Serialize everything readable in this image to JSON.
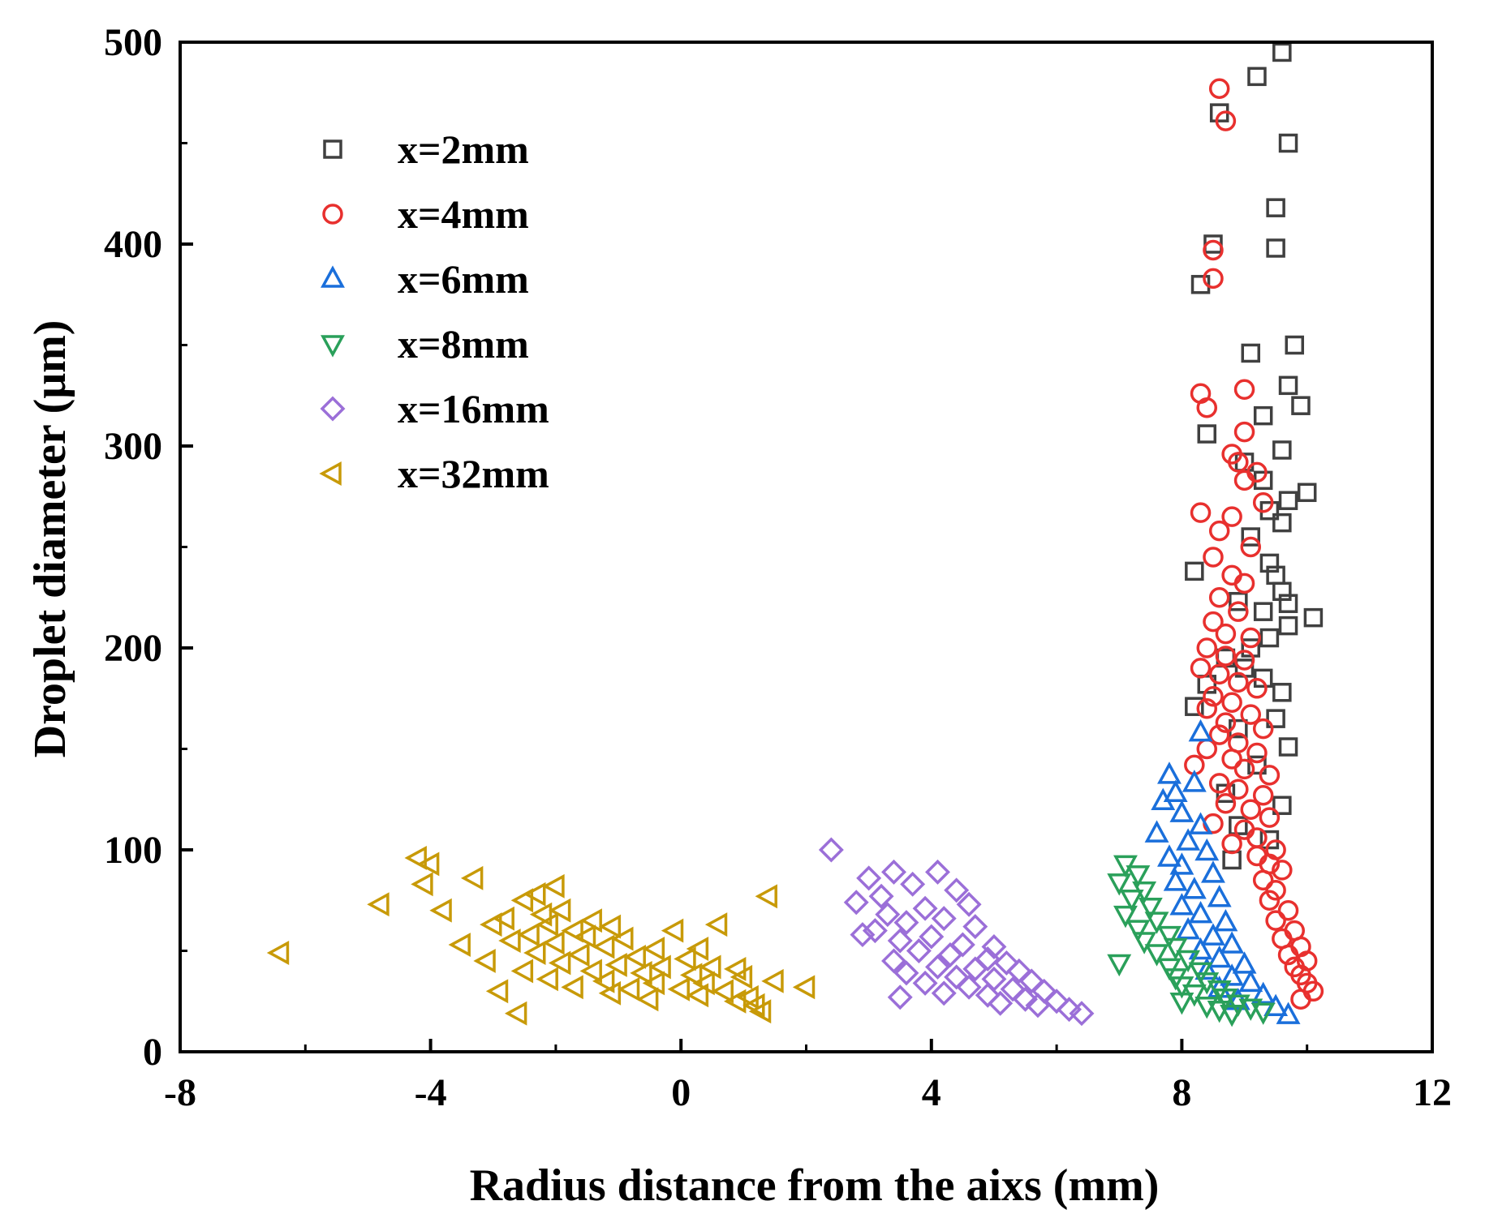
{
  "chart_data": {
    "type": "scatter",
    "title": "",
    "xlabel": "Radius distance from the aixs (mm)",
    "ylabel": "Droplet diameter (μm)",
    "xlim": [
      -8,
      12
    ],
    "ylim": [
      0,
      500
    ],
    "x_ticks": [
      -8,
      -4,
      0,
      4,
      8,
      12
    ],
    "y_ticks": [
      0,
      100,
      200,
      300,
      400,
      500
    ],
    "grid": false,
    "legend_position": "top-left",
    "series": [
      {
        "name": "x=2mm",
        "marker": "square",
        "color": "#404040",
        "points": [
          [
            9.6,
            495
          ],
          [
            9.2,
            483
          ],
          [
            8.6,
            465
          ],
          [
            9.7,
            450
          ],
          [
            9.5,
            418
          ],
          [
            8.5,
            400
          ],
          [
            9.5,
            398
          ],
          [
            8.3,
            380
          ],
          [
            9.8,
            350
          ],
          [
            9.1,
            346
          ],
          [
            9.7,
            330
          ],
          [
            9.9,
            320
          ],
          [
            9.3,
            315
          ],
          [
            8.4,
            306
          ],
          [
            9.6,
            298
          ],
          [
            9.0,
            292
          ],
          [
            9.3,
            283
          ],
          [
            10.0,
            277
          ],
          [
            9.7,
            273
          ],
          [
            9.4,
            268
          ],
          [
            9.6,
            262
          ],
          [
            9.1,
            255
          ],
          [
            9.4,
            242
          ],
          [
            8.2,
            238
          ],
          [
            9.5,
            236
          ],
          [
            9.6,
            228
          ],
          [
            8.9,
            223
          ],
          [
            9.7,
            222
          ],
          [
            9.3,
            218
          ],
          [
            10.1,
            215
          ],
          [
            9.7,
            211
          ],
          [
            9.4,
            205
          ],
          [
            9.1,
            200
          ],
          [
            8.7,
            195
          ],
          [
            9.0,
            190
          ],
          [
            9.3,
            185
          ],
          [
            8.4,
            182
          ],
          [
            9.6,
            178
          ],
          [
            8.2,
            171
          ],
          [
            9.5,
            165
          ],
          [
            8.9,
            160
          ],
          [
            9.7,
            151
          ],
          [
            9.2,
            142
          ],
          [
            8.7,
            128
          ],
          [
            9.6,
            122
          ],
          [
            8.9,
            112
          ],
          [
            9.4,
            105
          ],
          [
            8.8,
            95
          ]
        ]
      },
      {
        "name": "x=4mm",
        "marker": "circle",
        "color": "#e8302e",
        "points": [
          [
            8.6,
            477
          ],
          [
            8.7,
            461
          ],
          [
            8.5,
            397
          ],
          [
            8.5,
            383
          ],
          [
            9.0,
            328
          ],
          [
            8.3,
            326
          ],
          [
            8.4,
            319
          ],
          [
            9.0,
            307
          ],
          [
            8.8,
            296
          ],
          [
            8.9,
            292
          ],
          [
            9.2,
            287
          ],
          [
            9.0,
            283
          ],
          [
            9.3,
            272
          ],
          [
            8.3,
            267
          ],
          [
            8.8,
            265
          ],
          [
            8.6,
            258
          ],
          [
            9.1,
            250
          ],
          [
            8.5,
            245
          ],
          [
            8.8,
            236
          ],
          [
            9.0,
            232
          ],
          [
            8.6,
            225
          ],
          [
            8.9,
            218
          ],
          [
            8.5,
            213
          ],
          [
            8.7,
            207
          ],
          [
            9.1,
            205
          ],
          [
            8.4,
            200
          ],
          [
            8.7,
            196
          ],
          [
            9.0,
            194
          ],
          [
            8.3,
            190
          ],
          [
            8.6,
            187
          ],
          [
            8.9,
            183
          ],
          [
            9.2,
            180
          ],
          [
            8.5,
            176
          ],
          [
            8.8,
            173
          ],
          [
            8.4,
            170
          ],
          [
            9.1,
            167
          ],
          [
            8.7,
            163
          ],
          [
            9.3,
            160
          ],
          [
            8.6,
            157
          ],
          [
            8.9,
            153
          ],
          [
            8.4,
            150
          ],
          [
            9.2,
            148
          ],
          [
            8.8,
            145
          ],
          [
            8.2,
            142
          ],
          [
            9.0,
            140
          ],
          [
            9.4,
            137
          ],
          [
            8.6,
            133
          ],
          [
            8.9,
            130
          ],
          [
            9.3,
            127
          ],
          [
            8.7,
            123
          ],
          [
            9.1,
            120
          ],
          [
            9.4,
            116
          ],
          [
            8.5,
            113
          ],
          [
            9.0,
            110
          ],
          [
            9.2,
            106
          ],
          [
            8.8,
            103
          ],
          [
            9.5,
            100
          ],
          [
            9.2,
            97
          ],
          [
            9.4,
            93
          ],
          [
            9.6,
            90
          ],
          [
            9.3,
            85
          ],
          [
            9.5,
            80
          ],
          [
            9.4,
            75
          ],
          [
            9.7,
            70
          ],
          [
            9.5,
            65
          ],
          [
            9.8,
            60
          ],
          [
            9.6,
            56
          ],
          [
            9.9,
            52
          ],
          [
            9.7,
            48
          ],
          [
            10.0,
            45
          ],
          [
            9.8,
            42
          ],
          [
            9.9,
            38
          ],
          [
            10.0,
            34
          ],
          [
            10.1,
            30
          ],
          [
            9.9,
            26
          ]
        ]
      },
      {
        "name": "x=6mm",
        "marker": "triangle-up",
        "color": "#1a6fdb",
        "points": [
          [
            8.3,
            158
          ],
          [
            7.8,
            137
          ],
          [
            8.2,
            133
          ],
          [
            7.9,
            128
          ],
          [
            7.7,
            124
          ],
          [
            8.0,
            118
          ],
          [
            8.3,
            112
          ],
          [
            7.6,
            108
          ],
          [
            8.1,
            104
          ],
          [
            8.4,
            99
          ],
          [
            7.8,
            96
          ],
          [
            8.0,
            92
          ],
          [
            8.5,
            88
          ],
          [
            7.9,
            84
          ],
          [
            8.2,
            80
          ],
          [
            8.6,
            76
          ],
          [
            8.0,
            72
          ],
          [
            8.3,
            68
          ],
          [
            8.7,
            64
          ],
          [
            8.1,
            60
          ],
          [
            8.5,
            57
          ],
          [
            8.8,
            53
          ],
          [
            8.3,
            50
          ],
          [
            8.6,
            46
          ],
          [
            9.0,
            43
          ],
          [
            8.4,
            40
          ],
          [
            8.8,
            37
          ],
          [
            9.1,
            34
          ],
          [
            8.6,
            31
          ],
          [
            9.3,
            28
          ],
          [
            8.9,
            25
          ],
          [
            9.5,
            22
          ],
          [
            9.7,
            18
          ]
        ]
      },
      {
        "name": "x=8mm",
        "marker": "triangle-down",
        "color": "#2aa05a",
        "points": [
          [
            7.1,
            93
          ],
          [
            7.3,
            88
          ],
          [
            7.0,
            84
          ],
          [
            7.4,
            80
          ],
          [
            7.2,
            76
          ],
          [
            7.5,
            72
          ],
          [
            7.1,
            68
          ],
          [
            7.6,
            65
          ],
          [
            7.3,
            61
          ],
          [
            7.8,
            58
          ],
          [
            7.4,
            55
          ],
          [
            7.9,
            52
          ],
          [
            7.6,
            49
          ],
          [
            8.1,
            46
          ],
          [
            7.0,
            44
          ],
          [
            7.8,
            42
          ],
          [
            8.3,
            40
          ],
          [
            7.9,
            37
          ],
          [
            8.4,
            35
          ],
          [
            8.0,
            33
          ],
          [
            8.6,
            31
          ],
          [
            8.2,
            29
          ],
          [
            8.7,
            27
          ],
          [
            8.0,
            25
          ],
          [
            8.9,
            24
          ],
          [
            8.4,
            23
          ],
          [
            9.1,
            22
          ],
          [
            8.6,
            21
          ],
          [
            9.3,
            20
          ],
          [
            8.8,
            19
          ]
        ]
      },
      {
        "name": "x=16mm",
        "marker": "diamond",
        "color": "#9b6fd8",
        "points": [
          [
            2.4,
            100
          ],
          [
            3.4,
            89
          ],
          [
            4.1,
            89
          ],
          [
            3.0,
            86
          ],
          [
            3.7,
            83
          ],
          [
            4.4,
            80
          ],
          [
            3.2,
            77
          ],
          [
            2.8,
            74
          ],
          [
            4.6,
            73
          ],
          [
            3.9,
            71
          ],
          [
            3.3,
            68
          ],
          [
            4.2,
            66
          ],
          [
            3.6,
            64
          ],
          [
            4.7,
            62
          ],
          [
            3.1,
            60
          ],
          [
            2.9,
            58
          ],
          [
            4.0,
            57
          ],
          [
            3.5,
            55
          ],
          [
            4.5,
            53
          ],
          [
            5.0,
            52
          ],
          [
            3.8,
            50
          ],
          [
            4.3,
            48
          ],
          [
            4.9,
            46
          ],
          [
            3.4,
            45
          ],
          [
            5.2,
            44
          ],
          [
            4.1,
            42
          ],
          [
            4.7,
            41
          ],
          [
            5.4,
            40
          ],
          [
            3.6,
            39
          ],
          [
            4.4,
            37
          ],
          [
            5.0,
            36
          ],
          [
            5.6,
            35
          ],
          [
            3.9,
            34
          ],
          [
            4.6,
            32
          ],
          [
            5.3,
            31
          ],
          [
            5.8,
            30
          ],
          [
            4.2,
            29
          ],
          [
            4.9,
            28
          ],
          [
            3.5,
            27
          ],
          [
            5.5,
            26
          ],
          [
            6.0,
            25
          ],
          [
            5.1,
            24
          ],
          [
            5.7,
            23
          ],
          [
            6.2,
            21
          ],
          [
            6.4,
            19
          ]
        ]
      },
      {
        "name": "x=32mm",
        "marker": "triangle-left",
        "color": "#c89a08",
        "points": [
          [
            -4.2,
            96
          ],
          [
            -4.0,
            93
          ],
          [
            -3.3,
            86
          ],
          [
            -4.1,
            83
          ],
          [
            -2.0,
            82
          ],
          [
            -2.3,
            78
          ],
          [
            1.4,
            77
          ],
          [
            -4.8,
            73
          ],
          [
            -2.5,
            75
          ],
          [
            -3.8,
            70
          ],
          [
            -1.9,
            70
          ],
          [
            -2.2,
            68
          ],
          [
            -2.8,
            66
          ],
          [
            -1.4,
            65
          ],
          [
            -2.1,
            63
          ],
          [
            -3.0,
            63
          ],
          [
            0.6,
            63
          ],
          [
            -1.1,
            62
          ],
          [
            -1.7,
            60
          ],
          [
            -0.1,
            60
          ],
          [
            -2.4,
            58
          ],
          [
            -1.5,
            57
          ],
          [
            -0.9,
            56
          ],
          [
            -2.7,
            55
          ],
          [
            -2.0,
            54
          ],
          [
            -3.5,
            53
          ],
          [
            -1.2,
            52
          ],
          [
            -0.4,
            51
          ],
          [
            0.3,
            51
          ],
          [
            -6.4,
            49
          ],
          [
            -2.3,
            49
          ],
          [
            -1.6,
            48
          ],
          [
            -0.7,
            47
          ],
          [
            0.1,
            46
          ],
          [
            -3.1,
            45
          ],
          [
            -1.9,
            44
          ],
          [
            -1.0,
            43
          ],
          [
            -0.3,
            42
          ],
          [
            0.5,
            42
          ],
          [
            0.9,
            41
          ],
          [
            -2.5,
            40
          ],
          [
            -1.4,
            40
          ],
          [
            -0.6,
            39
          ],
          [
            0.2,
            38
          ],
          [
            1.0,
            37
          ],
          [
            -2.1,
            36
          ],
          [
            -1.2,
            35
          ],
          [
            -0.4,
            34
          ],
          [
            0.4,
            34
          ],
          [
            1.5,
            35
          ],
          [
            -1.7,
            32
          ],
          [
            -0.8,
            31
          ],
          [
            0.0,
            31
          ],
          [
            0.7,
            30
          ],
          [
            2.0,
            32
          ],
          [
            -2.9,
            30
          ],
          [
            -1.1,
            29
          ],
          [
            0.3,
            28
          ],
          [
            1.1,
            27
          ],
          [
            -0.5,
            26
          ],
          [
            0.9,
            25
          ],
          [
            1.2,
            23
          ],
          [
            -2.6,
            19
          ],
          [
            1.3,
            20
          ]
        ]
      }
    ]
  }
}
